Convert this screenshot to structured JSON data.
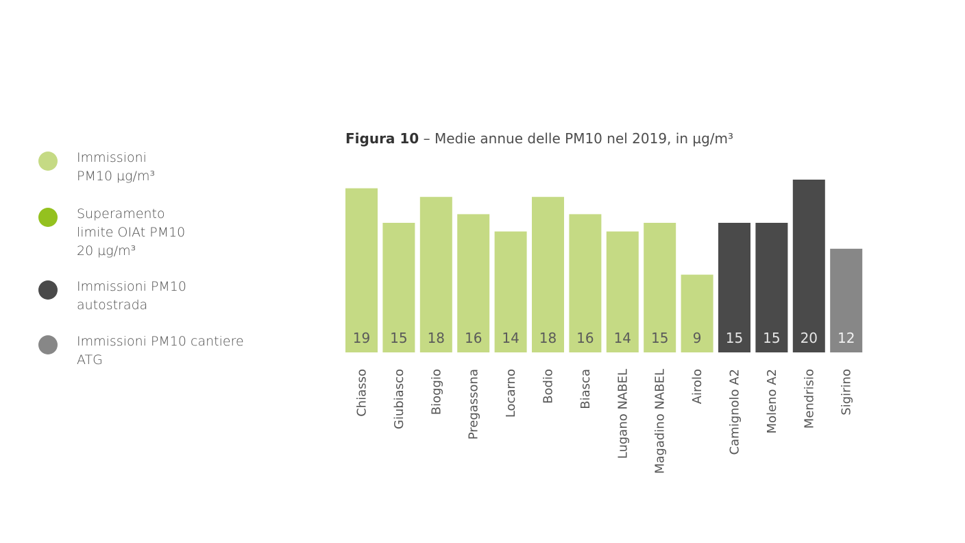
{
  "legend": {
    "items": [
      {
        "label": "Immissioni\nPM10 µg/m³",
        "color": "#c5da84"
      },
      {
        "label": "Superamento\nlimite OIAt PM10\n20 µg/m³",
        "color": "#94c11f"
      },
      {
        "label": "Immissioni PM10\nautostrada",
        "color": "#4a4a4a"
      },
      {
        "label": "Immissioni PM10 cantiere\nATG",
        "color": "#878787"
      }
    ]
  },
  "title": {
    "figure": "Figura 10",
    "text": " – Medie annue delle PM10 nel 2019, in µg/m³"
  },
  "chart_data": {
    "type": "bar",
    "categories": [
      "Chiasso",
      "Giubiasco",
      "Bioggio",
      "Pregassona",
      "Locarno",
      "Bodio",
      "Biasca",
      "Lugano NABEL",
      "Magadino NABEL",
      "Airolo",
      "Camignolo A2",
      "Moleno A2",
      "Mendrisio",
      "Sigirino"
    ],
    "values": [
      19,
      15,
      18,
      16,
      14,
      18,
      16,
      14,
      15,
      9,
      15,
      15,
      20,
      12
    ],
    "bar_colors": [
      "#c5da84",
      "#c5da84",
      "#c5da84",
      "#c5da84",
      "#c5da84",
      "#c5da84",
      "#c5da84",
      "#c5da84",
      "#c5da84",
      "#c5da84",
      "#4a4a4a",
      "#4a4a4a",
      "#4a4a4a",
      "#878787"
    ],
    "value_label_colors": [
      "#5a5a5a",
      "#5a5a5a",
      "#5a5a5a",
      "#5a5a5a",
      "#5a5a5a",
      "#5a5a5a",
      "#5a5a5a",
      "#5a5a5a",
      "#5a5a5a",
      "#5a5a5a",
      "#e6e6e6",
      "#e6e6e6",
      "#e6e6e6",
      "#f2f2f2"
    ],
    "ylim": [
      0,
      20
    ],
    "grid": false,
    "legend_position": "left"
  }
}
